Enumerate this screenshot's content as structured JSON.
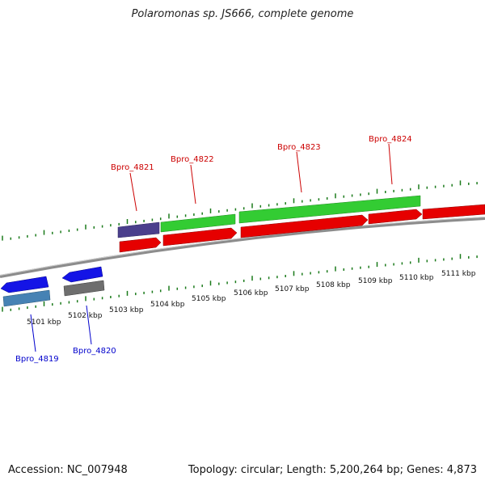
{
  "title": "Polaromonas sp. JS666, complete genome",
  "footer": {
    "accession": "Accession: NC_007948",
    "stats": "Topology: circular; Length: 5,200,264 bp; Genes: 4,873"
  },
  "axis_labels": [
    "5101 kbp",
    "5102 kbp",
    "5103 kbp",
    "5104 kbp",
    "5105 kbp",
    "5106 kbp",
    "5107 kbp",
    "5108 kbp",
    "5109 kbp",
    "5110 kbp",
    "5111 kbp"
  ],
  "gene_labels": {
    "Bpro_4819": "Bpro_4819",
    "Bpro_4820": "Bpro_4820",
    "Bpro_4821": "Bpro_4821",
    "Bpro_4822": "Bpro_4822",
    "Bpro_4823": "Bpro_4823",
    "Bpro_4824": "Bpro_4824"
  },
  "colors": {
    "forward_cds": "#e60000",
    "reverse_cds": "#1414e6",
    "green_feature": "#33cc33",
    "purple_feature": "#4a3f8c",
    "steelblue_feature": "#4682b4",
    "gray_feature": "#6e6e6e",
    "backbone": "#8c8c8c",
    "ticks": "#1a7a1a",
    "label_red": "#cc0000",
    "label_blue": "#0000cc"
  }
}
